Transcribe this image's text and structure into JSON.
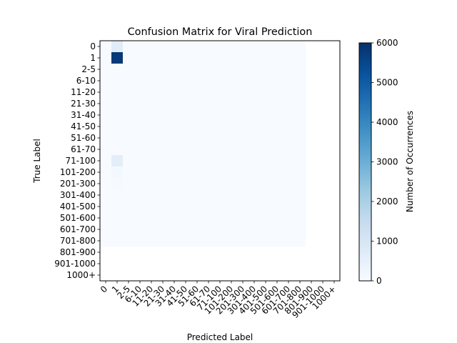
{
  "chart_data": {
    "type": "heatmap",
    "title": "Confusion Matrix for Viral Prediction",
    "xlabel": "Predicted Label",
    "ylabel": "True Label",
    "colorbar_label": "Number of Occurrences",
    "colormap": "Blues",
    "vmin": 0,
    "vmax": 6000,
    "colorbar_ticks": [
      0,
      1000,
      2000,
      3000,
      4000,
      5000,
      6000
    ],
    "categories": [
      "0",
      "1",
      "2-5",
      "6-10",
      "11-20",
      "21-30",
      "31-40",
      "41-50",
      "51-60",
      "61-70",
      "71-100",
      "101-200",
      "201-300",
      "301-400",
      "401-500",
      "501-600",
      "601-700",
      "701-800",
      "801-900",
      "901-1000",
      "1000+"
    ],
    "rows_with_data": 18,
    "cols_with_data": 18,
    "matrix": [
      [
        0,
        700,
        0,
        0,
        0,
        0,
        0,
        0,
        0,
        0,
        0,
        0,
        0,
        0,
        0,
        0,
        0,
        0
      ],
      [
        0,
        5800,
        0,
        0,
        0,
        0,
        0,
        0,
        0,
        0,
        0,
        0,
        0,
        0,
        0,
        0,
        0,
        0
      ],
      [
        0,
        0,
        0,
        0,
        0,
        0,
        0,
        0,
        0,
        0,
        0,
        0,
        0,
        0,
        0,
        0,
        0,
        0
      ],
      [
        0,
        0,
        0,
        0,
        0,
        0,
        0,
        0,
        0,
        0,
        0,
        0,
        0,
        0,
        0,
        0,
        0,
        0
      ],
      [
        0,
        0,
        0,
        0,
        0,
        0,
        0,
        0,
        0,
        0,
        0,
        0,
        0,
        0,
        0,
        0,
        0,
        0
      ],
      [
        0,
        0,
        0,
        0,
        0,
        0,
        0,
        0,
        0,
        0,
        0,
        0,
        0,
        0,
        0,
        0,
        0,
        0
      ],
      [
        0,
        0,
        0,
        0,
        0,
        0,
        0,
        0,
        0,
        0,
        0,
        0,
        0,
        0,
        0,
        0,
        0,
        0
      ],
      [
        0,
        0,
        0,
        0,
        0,
        0,
        0,
        0,
        0,
        0,
        0,
        0,
        0,
        0,
        0,
        0,
        0,
        0
      ],
      [
        0,
        0,
        0,
        0,
        0,
        0,
        0,
        0,
        0,
        0,
        0,
        0,
        0,
        0,
        0,
        0,
        0,
        0
      ],
      [
        0,
        0,
        0,
        0,
        0,
        0,
        0,
        0,
        0,
        0,
        0,
        0,
        0,
        0,
        0,
        0,
        0,
        0
      ],
      [
        0,
        600,
        0,
        0,
        0,
        0,
        0,
        0,
        0,
        0,
        0,
        0,
        0,
        0,
        0,
        0,
        0,
        0
      ],
      [
        0,
        150,
        0,
        0,
        0,
        0,
        0,
        0,
        0,
        0,
        0,
        0,
        0,
        0,
        0,
        0,
        0,
        0
      ],
      [
        0,
        60,
        0,
        0,
        0,
        0,
        0,
        0,
        0,
        0,
        0,
        0,
        0,
        0,
        0,
        0,
        0,
        0
      ],
      [
        0,
        0,
        0,
        0,
        0,
        0,
        0,
        0,
        0,
        0,
        0,
        0,
        0,
        0,
        0,
        0,
        0,
        0
      ],
      [
        0,
        0,
        0,
        0,
        0,
        0,
        0,
        0,
        0,
        0,
        0,
        0,
        0,
        0,
        0,
        0,
        0,
        0
      ],
      [
        0,
        0,
        0,
        0,
        0,
        0,
        0,
        0,
        0,
        0,
        0,
        0,
        0,
        0,
        0,
        0,
        0,
        0
      ],
      [
        0,
        0,
        0,
        0,
        0,
        0,
        0,
        0,
        0,
        0,
        0,
        0,
        0,
        0,
        0,
        0,
        0,
        0
      ],
      [
        0,
        0,
        0,
        0,
        0,
        0,
        0,
        0,
        0,
        0,
        0,
        0,
        0,
        0,
        0,
        0,
        0,
        0
      ]
    ]
  }
}
